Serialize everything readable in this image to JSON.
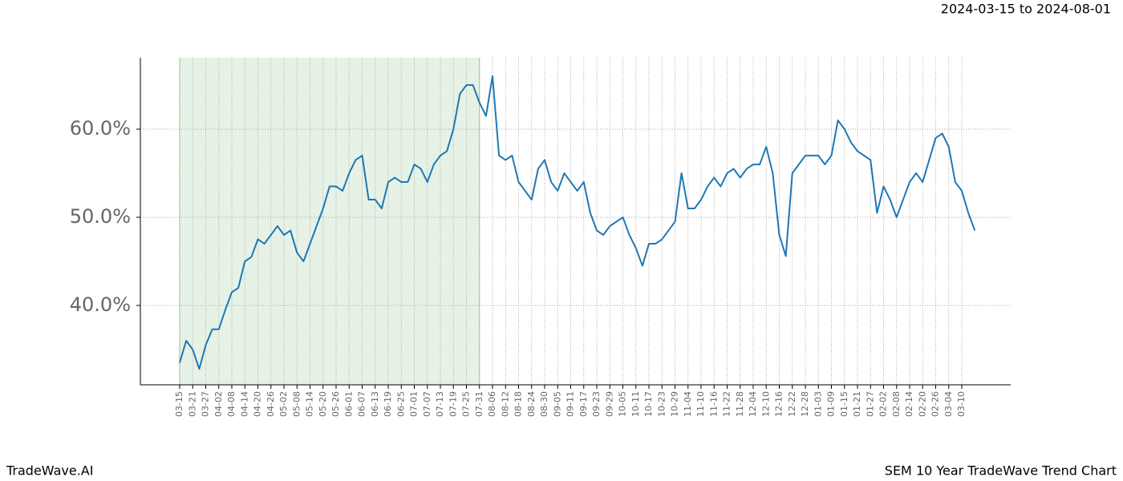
{
  "chart_data": {
    "type": "line",
    "subtitle": "2024-03-15 to 2024-08-01",
    "footer_left": "TradeWave.AI",
    "footer_right": "SEM 10 Year TradeWave Trend Chart",
    "categories": [
      "03-15",
      null,
      "03-21",
      null,
      "03-27",
      null,
      "04-02",
      null,
      "04-08",
      null,
      "04-14",
      null,
      "04-20",
      null,
      "04-26",
      null,
      "05-02",
      null,
      "05-08",
      null,
      "05-14",
      null,
      "05-20",
      null,
      "05-26",
      null,
      "06-01",
      null,
      "06-07",
      null,
      "06-13",
      null,
      "06-19",
      null,
      "06-25",
      null,
      "07-01",
      null,
      "07-07",
      null,
      "07-13",
      null,
      "07-19",
      null,
      "07-25",
      null,
      "07-31",
      null,
      "08-06",
      null,
      "08-12",
      null,
      "08-18",
      null,
      "08-24",
      null,
      "08-30",
      null,
      "09-05",
      null,
      "09-11",
      null,
      "09-17",
      null,
      "09-23",
      null,
      "09-29",
      null,
      "10-05",
      null,
      "10-11",
      null,
      "10-17",
      null,
      "10-23",
      null,
      "10-29",
      null,
      "11-04",
      null,
      "11-10",
      null,
      "11-16",
      null,
      "11-22",
      null,
      "11-28",
      null,
      "12-04",
      null,
      "12-10",
      null,
      "12-16",
      null,
      "12-22",
      null,
      "12-28",
      null,
      "01-03",
      null,
      "01-09",
      null,
      "01-15",
      null,
      "01-21",
      null,
      "01-27",
      null,
      "02-02",
      null,
      "02-08",
      null,
      "02-14",
      null,
      "02-20",
      null,
      "02-26",
      null,
      "03-04",
      null,
      "03-10",
      null,
      null
    ],
    "series": [
      {
        "color": "#1f77b4",
        "values": [
          33.5,
          36,
          35,
          32.8,
          35.5,
          37.3,
          37.3,
          39.5,
          41.5,
          42,
          45,
          45.5,
          47.5,
          47,
          48,
          49,
          48,
          48.5,
          46,
          45,
          47,
          49,
          51,
          53.5,
          53.5,
          53,
          55,
          56.5,
          57,
          52,
          52,
          51,
          54,
          54.5,
          54,
          54,
          56,
          55.5,
          54,
          56,
          57,
          57.5,
          60,
          64,
          65,
          65,
          63,
          61.5,
          66,
          57,
          56.5,
          57,
          54,
          53,
          52,
          55.5,
          56.5,
          54,
          53,
          55,
          54,
          53,
          54,
          50.5,
          48.5,
          48,
          49,
          49.5,
          50,
          48,
          46.5,
          44.5,
          47,
          47,
          47.5,
          48.5,
          49.5,
          55,
          51,
          51,
          52,
          53.5,
          54.5,
          53.5,
          55,
          55.5,
          54.5,
          55.5,
          56,
          56,
          58,
          55,
          48,
          45.6,
          55,
          56,
          57,
          57,
          57,
          56,
          57,
          61,
          60,
          58.5,
          57.5,
          57,
          56.5,
          50.5,
          53.5,
          52,
          50,
          52,
          54,
          55,
          54,
          56.5,
          59,
          59.5,
          58,
          54,
          53,
          50.5,
          48.5
        ]
      }
    ],
    "highlight_range": [
      "03-15",
      "07-31"
    ],
    "highlight_color": "#e6f2e6",
    "ylim": [
      31,
      68.1
    ],
    "yticks": [
      {
        "value": 40,
        "label": "40.0%"
      },
      {
        "value": 50,
        "label": "50.0%"
      },
      {
        "value": 60,
        "label": "60.0%"
      }
    ],
    "grid": true
  }
}
